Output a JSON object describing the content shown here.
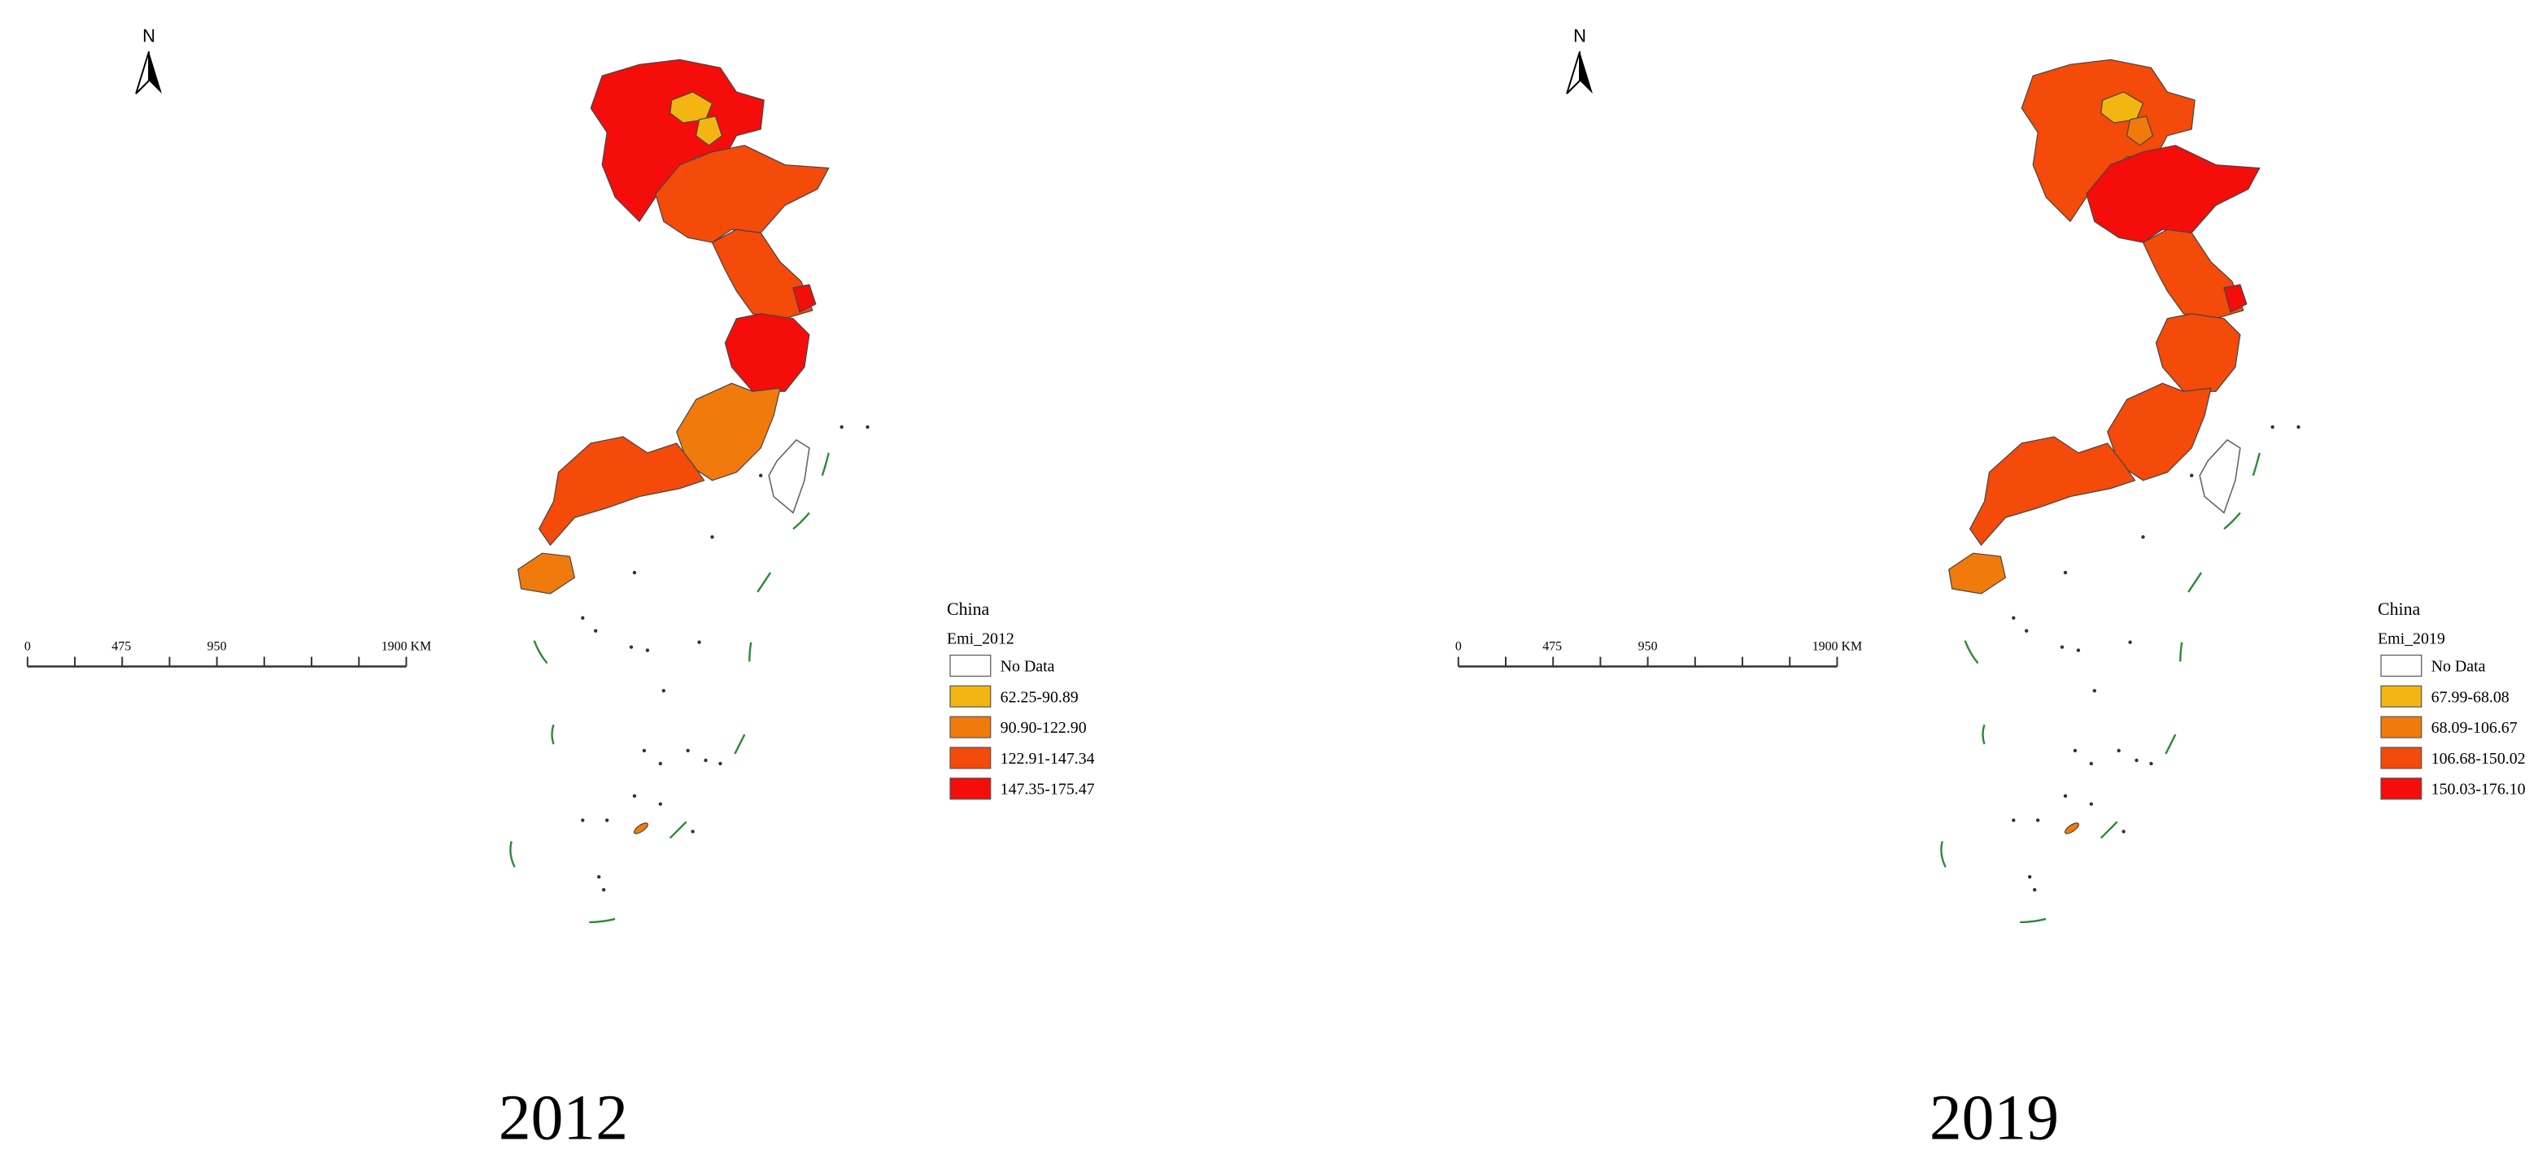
{
  "panels": [
    {
      "north": "N",
      "scale_bar": [
        "0",
        "475",
        "950",
        "1900 KM"
      ],
      "legend_title": "China",
      "legend_field": "Emi_2012",
      "legend_items": [
        {
          "label": "No Data",
          "color": "#ffffff"
        },
        {
          "label": "62.25-90.89",
          "color": "#f2b511"
        },
        {
          "label": "90.90-122.90",
          "color": "#f07b0c"
        },
        {
          "label": "122.91-147.34",
          "color": "#f44a0a"
        },
        {
          "label": "147.35-175.47",
          "color": "#f40d0a"
        }
      ],
      "caption": "2012"
    },
    {
      "north": "N",
      "scale_bar": [
        "0",
        "475",
        "950",
        "1900 KM"
      ],
      "legend_title": "China",
      "legend_field": "Emi_2019",
      "legend_items": [
        {
          "label": "No Data",
          "color": "#ffffff"
        },
        {
          "label": "67.99-68.08",
          "color": "#f2b511"
        },
        {
          "label": "68.09-106.67",
          "color": "#f07b0c"
        },
        {
          "label": "106.68-150.02",
          "color": "#f44a0a"
        },
        {
          "label": "150.03-176.10",
          "color": "#f40d0a"
        }
      ],
      "caption": "2019"
    }
  ]
}
